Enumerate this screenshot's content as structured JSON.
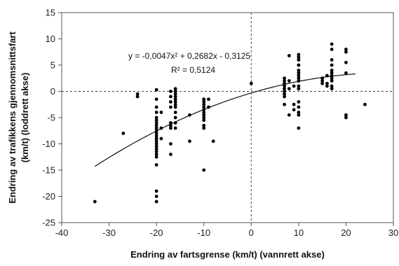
{
  "chart_data": {
    "type": "scatter",
    "xlabel": "Endring av fartsgrense (km/t) (vannrett akse)",
    "ylabel_line1": "Endring av trafikkens gjennomsnittsfart",
    "ylabel_line2": "(km/t) (loddrett akse)",
    "xlim": [
      -40,
      30
    ],
    "ylim": [
      -25,
      15
    ],
    "x_ticks": [
      -40,
      -30,
      -20,
      -10,
      0,
      10,
      20,
      30
    ],
    "y_ticks": [
      -25,
      -20,
      -15,
      -10,
      -5,
      0,
      5,
      10,
      15
    ],
    "x_tick_labels": [
      "-40",
      "-30",
      "-20",
      "-10",
      "0",
      "10",
      "20",
      "30"
    ],
    "y_tick_labels": [
      "-25",
      "-20",
      "-15",
      "-10",
      "-5",
      "0",
      "5",
      "10",
      "15"
    ],
    "grid": false,
    "reference_lines": {
      "x": 0,
      "y": 0,
      "style": "dashed"
    },
    "equation_label": "y = -0,0047x² + 0,2682x - 0,3125",
    "r2_label": "R² = 0,5124",
    "trendline": {
      "type": "polynomial",
      "coefficients": [
        -0.0047,
        0.2682,
        -0.3125
      ],
      "x_range": [
        -33,
        22
      ]
    },
    "points": [
      [
        -33,
        -21
      ],
      [
        -27,
        -8
      ],
      [
        -24,
        -0.5
      ],
      [
        -24,
        -1
      ],
      [
        -20,
        0.3
      ],
      [
        -20,
        -1.5
      ],
      [
        -20,
        -3
      ],
      [
        -20,
        -4
      ],
      [
        -20,
        -5
      ],
      [
        -20,
        -5.5
      ],
      [
        -20,
        -6
      ],
      [
        -20,
        -6.5
      ],
      [
        -20,
        -7
      ],
      [
        -20,
        -7.5
      ],
      [
        -20,
        -8
      ],
      [
        -20,
        -8.5
      ],
      [
        -20,
        -9
      ],
      [
        -20,
        -9.5
      ],
      [
        -20,
        -10
      ],
      [
        -20,
        -10.5
      ],
      [
        -20,
        -11
      ],
      [
        -20,
        -11.5
      ],
      [
        -20,
        -12
      ],
      [
        -20,
        -12.5
      ],
      [
        -20,
        -14
      ],
      [
        -20,
        -19
      ],
      [
        -20,
        -20
      ],
      [
        -20,
        -21
      ],
      [
        -19,
        -4
      ],
      [
        -19,
        -7
      ],
      [
        -19,
        -9
      ],
      [
        -17,
        0
      ],
      [
        -17,
        -1
      ],
      [
        -17,
        -2
      ],
      [
        -17,
        -3
      ],
      [
        -17,
        -6
      ],
      [
        -17,
        -6.5
      ],
      [
        -17,
        -7
      ],
      [
        -17,
        -10
      ],
      [
        -17,
        -12
      ],
      [
        -16,
        0.5
      ],
      [
        -16,
        0
      ],
      [
        -16,
        -0.5
      ],
      [
        -16,
        -1
      ],
      [
        -16,
        -1.5
      ],
      [
        -16,
        -2
      ],
      [
        -16,
        -2.5
      ],
      [
        -16,
        -3
      ],
      [
        -16,
        -4
      ],
      [
        -16,
        -5
      ],
      [
        -16,
        -6
      ],
      [
        -16,
        -7
      ],
      [
        -13,
        -4.5
      ],
      [
        -13,
        -9.5
      ],
      [
        -10,
        -1.5
      ],
      [
        -10,
        -2
      ],
      [
        -10,
        -2.5
      ],
      [
        -10,
        -3
      ],
      [
        -10,
        -3.5
      ],
      [
        -10,
        -4
      ],
      [
        -10,
        -4.5
      ],
      [
        -10,
        -5
      ],
      [
        -10,
        -5.5
      ],
      [
        -10,
        -6.5
      ],
      [
        -10,
        -7
      ],
      [
        -10,
        -15
      ],
      [
        -9,
        -1.5
      ],
      [
        -9,
        -3
      ],
      [
        -8,
        -9.5
      ],
      [
        0,
        1.5
      ],
      [
        7,
        2.5
      ],
      [
        7,
        2
      ],
      [
        7,
        1.5
      ],
      [
        7,
        1
      ],
      [
        7,
        0.5
      ],
      [
        7,
        0
      ],
      [
        7,
        -0.5
      ],
      [
        7,
        -1
      ],
      [
        7,
        -2.5
      ],
      [
        8,
        6.8
      ],
      [
        8,
        -4.5
      ],
      [
        8,
        2
      ],
      [
        8,
        0.5
      ],
      [
        9,
        1
      ],
      [
        9,
        -3.5
      ],
      [
        9,
        -2.5
      ],
      [
        10,
        7
      ],
      [
        10,
        6.5
      ],
      [
        10,
        6
      ],
      [
        10,
        5
      ],
      [
        10,
        4
      ],
      [
        10,
        3.5
      ],
      [
        10,
        3
      ],
      [
        10,
        2.5
      ],
      [
        10,
        2
      ],
      [
        10,
        1
      ],
      [
        10,
        0.5
      ],
      [
        10,
        -2
      ],
      [
        10,
        -3
      ],
      [
        10,
        -4
      ],
      [
        10,
        -4.5
      ],
      [
        10,
        -7
      ],
      [
        15,
        2
      ],
      [
        15,
        2.5
      ],
      [
        15,
        1.5
      ],
      [
        16,
        3
      ],
      [
        16,
        1.5
      ],
      [
        16,
        1
      ],
      [
        17,
        9
      ],
      [
        17,
        8
      ],
      [
        17,
        6
      ],
      [
        17,
        5
      ],
      [
        17,
        4
      ],
      [
        17,
        3.5
      ],
      [
        17,
        3
      ],
      [
        17,
        2.5
      ],
      [
        17,
        2
      ],
      [
        17,
        1
      ],
      [
        17,
        0.5
      ],
      [
        20,
        8
      ],
      [
        20,
        7.5
      ],
      [
        20,
        5.5
      ],
      [
        20,
        3.5
      ],
      [
        20,
        -4.5
      ],
      [
        20,
        -5
      ],
      [
        24,
        -2.5
      ]
    ]
  }
}
